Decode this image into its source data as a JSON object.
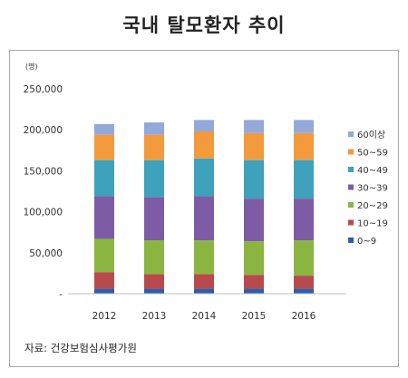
{
  "title": "국내 탈모환자 추이",
  "unit": "(명)",
  "source": "자료: 건강보험심사평가원",
  "chart_data": {
    "type": "bar",
    "stacked": true,
    "title": "국내 탈모환자 추이",
    "xlabel": "",
    "ylabel": "(명)",
    "ylim": [
      0,
      250000
    ],
    "yticks": [
      "-",
      "50,000",
      "100,000",
      "150,000",
      "200,000",
      "250,000"
    ],
    "grid": false,
    "legend_position": "right",
    "categories": [
      "2012",
      "2013",
      "2014",
      "2015",
      "2016"
    ],
    "series": [
      {
        "name": "0~9",
        "color": "#2e5ea8",
        "values": [
          6000,
          6000,
          6000,
          6000,
          6000
        ]
      },
      {
        "name": "10~19",
        "color": "#b84a4e",
        "values": [
          20000,
          18000,
          18000,
          17000,
          16000
        ]
      },
      {
        "name": "20~29",
        "color": "#8bb541",
        "values": [
          41000,
          41000,
          41000,
          41000,
          43000
        ]
      },
      {
        "name": "30~39",
        "color": "#7d5ca5",
        "values": [
          52000,
          53000,
          54000,
          52000,
          51000
        ]
      },
      {
        "name": "40~49",
        "color": "#3ea2bd",
        "values": [
          44000,
          45000,
          46000,
          47000,
          47000
        ]
      },
      {
        "name": "50~59",
        "color": "#f29a3c",
        "values": [
          31000,
          31000,
          33000,
          33000,
          33000
        ]
      },
      {
        "name": "60이상",
        "color": "#93a9d9",
        "values": [
          13000,
          15000,
          14000,
          16000,
          16000
        ]
      }
    ]
  }
}
